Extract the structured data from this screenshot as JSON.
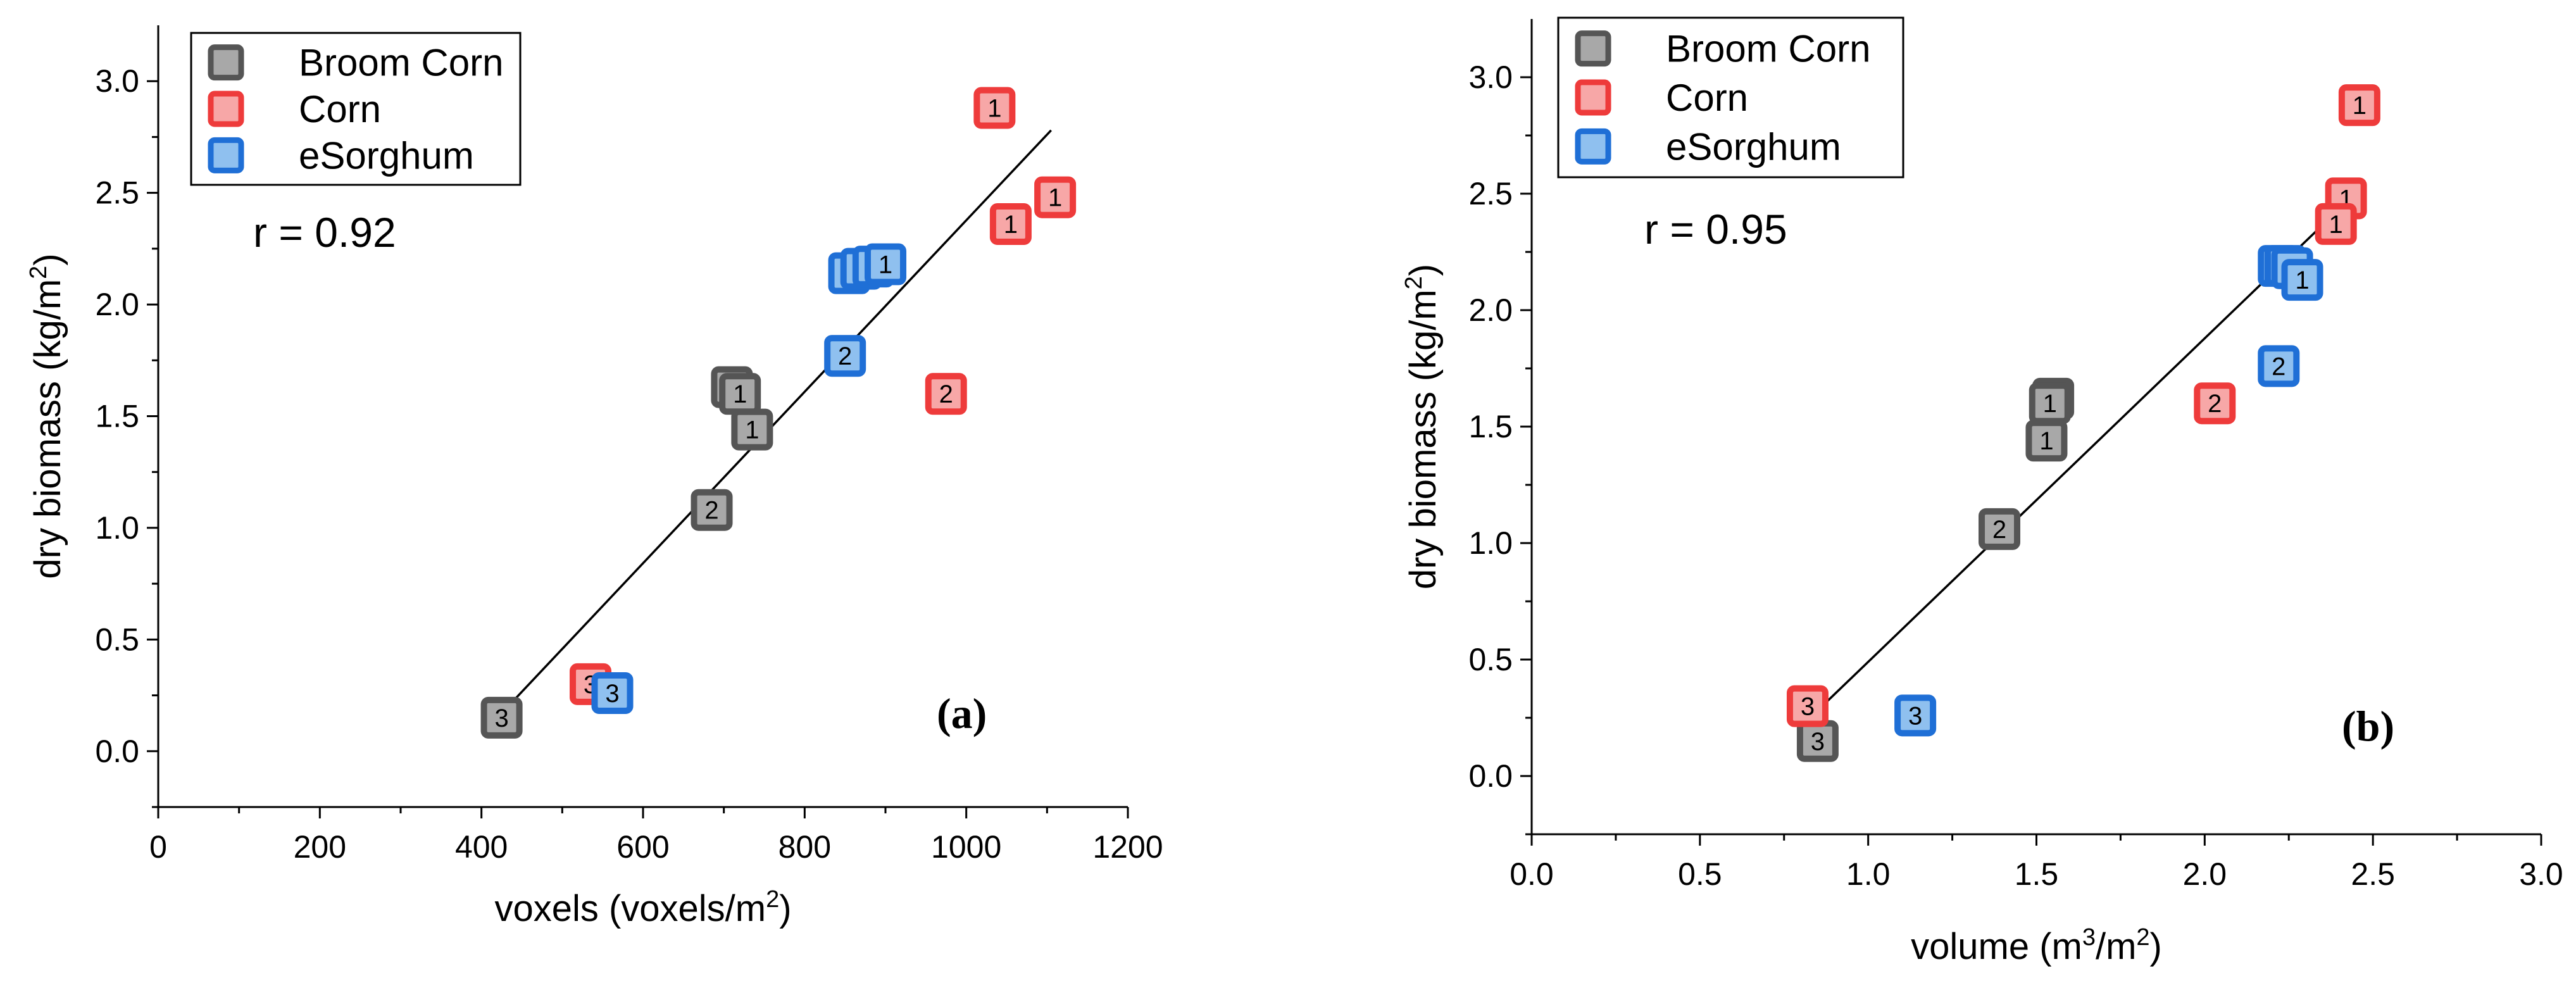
{
  "chart_data": [
    {
      "type": "scatter",
      "panel_label": "(a)",
      "xlabel": "voxels (voxels/m",
      "xlabel_sup": "2",
      "xlabel_end": ")",
      "ylabel": "dry biomass (kg/m",
      "ylabel_sup": "2",
      "ylabel_end": ")",
      "xlim": [
        0,
        1200
      ],
      "ylim": [
        -0.25,
        3.25
      ],
      "xticks": [
        0,
        200,
        400,
        600,
        800,
        1000,
        1200
      ],
      "yticks": [
        0.0,
        0.5,
        1.0,
        1.5,
        2.0,
        2.5,
        3.0
      ],
      "xtick_labels": [
        "0",
        "200",
        "400",
        "600",
        "800",
        "1000",
        "1200"
      ],
      "ytick_labels": [
        "0.0",
        "0.5",
        "1.0",
        "1.5",
        "2.0",
        "2.5",
        "3.0"
      ],
      "annotation": "r = 0.92",
      "legend_position": "top-left",
      "fit_line": {
        "x": [
          425,
          1105
        ],
        "y": [
          0.17,
          2.78
        ]
      },
      "series": [
        {
          "name": "Broom Corn",
          "color": "#555555",
          "fill": "#a8a8a8",
          "points": [
            {
              "x": 710,
              "y": 1.63,
              "label": "1"
            },
            {
              "x": 720,
              "y": 1.6,
              "label": "1"
            },
            {
              "x": 735,
              "y": 1.44,
              "label": "1"
            },
            {
              "x": 685,
              "y": 1.08,
              "label": "2"
            },
            {
              "x": 425,
              "y": 0.15,
              "label": "3"
            }
          ]
        },
        {
          "name": "Corn",
          "color": "#ee3b3b",
          "fill": "#f7a7a7",
          "points": [
            {
              "x": 1035,
              "y": 2.88,
              "label": "1"
            },
            {
              "x": 1055,
              "y": 2.36,
              "label": "1"
            },
            {
              "x": 1110,
              "y": 2.48,
              "label": "1"
            },
            {
              "x": 975,
              "y": 1.6,
              "label": "2"
            },
            {
              "x": 535,
              "y": 0.3,
              "label": "3"
            }
          ]
        },
        {
          "name": "eSorghum",
          "color": "#1f6fd6",
          "fill": "#8fc0ef",
          "points": [
            {
              "x": 855,
              "y": 2.14,
              "label": "1"
            },
            {
              "x": 870,
              "y": 2.16,
              "label": "1"
            },
            {
              "x": 885,
              "y": 2.17,
              "label": "1"
            },
            {
              "x": 900,
              "y": 2.18,
              "label": "1"
            },
            {
              "x": 850,
              "y": 1.77,
              "label": "2"
            },
            {
              "x": 562,
              "y": 0.26,
              "label": "3"
            }
          ]
        }
      ]
    },
    {
      "type": "scatter",
      "panel_label": "(b)",
      "xlabel": "volume (m",
      "xlabel_sup": "3",
      "xlabel_mid": "/m",
      "xlabel_sup2": "2",
      "xlabel_end": ")",
      "ylabel": "dry biomass (kg/m",
      "ylabel_sup": "2",
      "ylabel_end": ")",
      "xlim": [
        0,
        3.0
      ],
      "ylim": [
        -0.25,
        3.25
      ],
      "xticks": [
        0.0,
        0.5,
        1.0,
        1.5,
        2.0,
        2.5,
        3.0
      ],
      "yticks": [
        0.0,
        0.5,
        1.0,
        1.5,
        2.0,
        2.5,
        3.0
      ],
      "xtick_labels": [
        "0.0",
        "0.5",
        "1.0",
        "1.5",
        "2.0",
        "2.5",
        "3.0"
      ],
      "ytick_labels": [
        "0.0",
        "0.5",
        "1.0",
        "1.5",
        "2.0",
        "2.5",
        "3.0"
      ],
      "annotation": "r = 0.95",
      "legend_position": "top-left",
      "fit_line": {
        "x": [
          0.82,
          2.44
        ],
        "y": [
          0.24,
          2.49
        ]
      },
      "series": [
        {
          "name": "Broom Corn",
          "color": "#555555",
          "fill": "#a8a8a8",
          "points": [
            {
              "x": 1.55,
              "y": 1.62,
              "label": "1"
            },
            {
              "x": 1.54,
              "y": 1.6,
              "label": "1"
            },
            {
              "x": 1.53,
              "y": 1.44,
              "label": "1"
            },
            {
              "x": 1.39,
              "y": 1.06,
              "label": "2"
            },
            {
              "x": 0.85,
              "y": 0.15,
              "label": "3"
            }
          ]
        },
        {
          "name": "Corn",
          "color": "#ee3b3b",
          "fill": "#f7a7a7",
          "points": [
            {
              "x": 2.46,
              "y": 2.88,
              "label": "1"
            },
            {
              "x": 2.42,
              "y": 2.48,
              "label": "1"
            },
            {
              "x": 2.39,
              "y": 2.37,
              "label": "1"
            },
            {
              "x": 2.03,
              "y": 1.6,
              "label": "2"
            },
            {
              "x": 0.82,
              "y": 0.3,
              "label": "3"
            }
          ]
        },
        {
          "name": "eSorghum",
          "color": "#1f6fd6",
          "fill": "#8fc0ef",
          "points": [
            {
              "x": 2.22,
              "y": 2.19,
              "label": "1"
            },
            {
              "x": 2.24,
              "y": 2.19,
              "label": "1"
            },
            {
              "x": 2.26,
              "y": 2.18,
              "label": "1"
            },
            {
              "x": 2.29,
              "y": 2.13,
              "label": "1"
            },
            {
              "x": 2.22,
              "y": 1.76,
              "label": "2"
            },
            {
              "x": 1.14,
              "y": 0.26,
              "label": "3"
            }
          ]
        }
      ]
    }
  ]
}
